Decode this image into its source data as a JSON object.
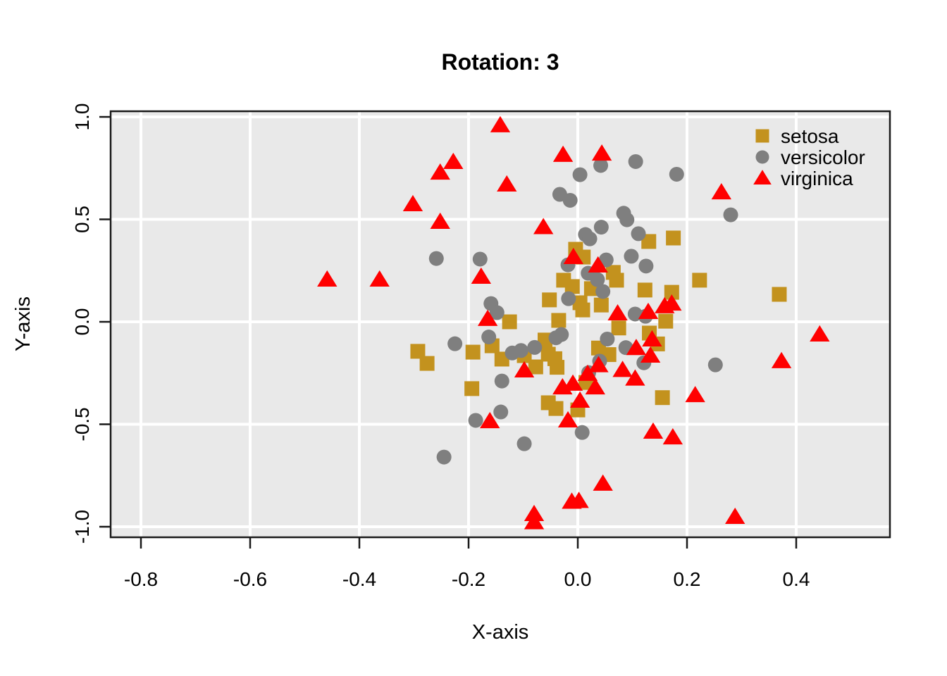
{
  "chart_data": {
    "type": "scatter",
    "title": "Rotation: 3",
    "xlabel": "X-axis",
    "ylabel": "Y-axis",
    "xlim": [
      -0.8555,
      0.5716
    ],
    "ylim": [
      -1.0515,
      1.0275
    ],
    "grid": true,
    "panel_bg": "#E9E9E9",
    "grid_color": "#FFFFFF",
    "axis_color": "#1A1A1A",
    "x_ticks": [
      {
        "value": -0.8,
        "label": "-0.8"
      },
      {
        "value": -0.6,
        "label": "-0.6"
      },
      {
        "value": -0.4,
        "label": "-0.4"
      },
      {
        "value": -0.2,
        "label": "-0.2"
      },
      {
        "value": 0.0,
        "label": "0.0"
      },
      {
        "value": 0.2,
        "label": "0.2"
      },
      {
        "value": 0.4,
        "label": "0.4"
      }
    ],
    "y_ticks": [
      {
        "value": -1.0,
        "label": "-1.0"
      },
      {
        "value": -0.5,
        "label": "-0.5"
      },
      {
        "value": 0.0,
        "label": "0.0"
      },
      {
        "value": 0.5,
        "label": "0.5"
      },
      {
        "value": 1.0,
        "label": "1.0"
      }
    ],
    "legend": {
      "position": "top-right"
    },
    "series": [
      {
        "name": "setosa",
        "marker": "square",
        "color": "#C3921E",
        "points": [
          [
            0.13,
            0.392
          ],
          [
            0.175,
            0.409
          ],
          [
            -0.004,
            0.354
          ],
          [
            0.01,
            0.316
          ],
          [
            0.065,
            0.241
          ],
          [
            0.071,
            0.203
          ],
          [
            -0.026,
            0.203
          ],
          [
            -0.01,
            0.172
          ],
          [
            0.025,
            0.162
          ],
          [
            0.123,
            0.155
          ],
          [
            0.172,
            0.144
          ],
          [
            -0.052,
            0.107
          ],
          [
            0.004,
            0.093
          ],
          [
            0.009,
            0.058
          ],
          [
            0.043,
            0.082
          ],
          [
            0.223,
            0.203
          ],
          [
            0.369,
            0.134
          ],
          [
            0.161,
            0.003
          ],
          [
            -0.125,
            0.0
          ],
          [
            -0.035,
            0.007
          ],
          [
            0.075,
            -0.03
          ],
          [
            0.131,
            -0.055
          ],
          [
            -0.157,
            -0.117
          ],
          [
            -0.192,
            -0.148
          ],
          [
            -0.139,
            -0.182
          ],
          [
            -0.098,
            -0.165
          ],
          [
            -0.06,
            -0.089
          ],
          [
            -0.054,
            -0.158
          ],
          [
            -0.042,
            -0.18
          ],
          [
            -0.038,
            -0.222
          ],
          [
            -0.077,
            -0.22
          ],
          [
            -0.194,
            -0.326
          ],
          [
            -0.054,
            -0.395
          ],
          [
            -0.04,
            -0.423
          ],
          [
            0.0,
            -0.43
          ],
          [
            0.038,
            -0.128
          ],
          [
            0.057,
            -0.16
          ],
          [
            0.146,
            -0.108
          ],
          [
            0.155,
            -0.37
          ],
          [
            -0.293,
            -0.144
          ],
          [
            -0.276,
            -0.203
          ],
          [
            0.015,
            -0.296
          ]
        ]
      },
      {
        "name": "versicolor",
        "marker": "circle",
        "color": "#7F7F7F",
        "points": [
          [
            -0.259,
            0.309
          ],
          [
            0.042,
            0.763
          ],
          [
            0.106,
            0.782
          ],
          [
            0.181,
            0.72
          ],
          [
            0.004,
            0.718
          ],
          [
            -0.033,
            0.622
          ],
          [
            -0.014,
            0.593
          ],
          [
            0.084,
            0.53
          ],
          [
            0.09,
            0.498
          ],
          [
            0.043,
            0.462
          ],
          [
            0.014,
            0.426
          ],
          [
            0.022,
            0.405
          ],
          [
            0.111,
            0.43
          ],
          [
            0.28,
            0.522
          ],
          [
            -0.179,
            0.306
          ],
          [
            -0.018,
            0.278
          ],
          [
            0.052,
            0.302
          ],
          [
            0.098,
            0.32
          ],
          [
            0.125,
            0.272
          ],
          [
            0.019,
            0.237
          ],
          [
            0.036,
            0.206
          ],
          [
            0.046,
            0.148
          ],
          [
            -0.017,
            0.113
          ],
          [
            -0.159,
            0.089
          ],
          [
            -0.148,
            0.045
          ],
          [
            0.105,
            0.038
          ],
          [
            0.124,
            0.027
          ],
          [
            -0.225,
            -0.107
          ],
          [
            -0.163,
            -0.074
          ],
          [
            -0.12,
            -0.152
          ],
          [
            -0.104,
            -0.14
          ],
          [
            -0.079,
            -0.125
          ],
          [
            -0.04,
            -0.078
          ],
          [
            -0.03,
            -0.062
          ],
          [
            0.054,
            -0.084
          ],
          [
            0.088,
            -0.126
          ],
          [
            0.121,
            -0.2
          ],
          [
            0.02,
            -0.248
          ],
          [
            0.04,
            -0.192
          ],
          [
            0.252,
            -0.21
          ],
          [
            -0.139,
            -0.289
          ],
          [
            -0.141,
            -0.44
          ],
          [
            -0.187,
            -0.481
          ],
          [
            0.008,
            -0.54
          ],
          [
            -0.098,
            -0.595
          ],
          [
            -0.245,
            -0.66
          ]
        ]
      },
      {
        "name": "virginica",
        "marker": "triangle",
        "color": "#FF0000",
        "points": [
          [
            -0.142,
            0.959
          ],
          [
            -0.027,
            0.815
          ],
          [
            0.044,
            0.821
          ],
          [
            -0.228,
            0.78
          ],
          [
            -0.252,
            0.728
          ],
          [
            -0.13,
            0.67
          ],
          [
            -0.302,
            0.574
          ],
          [
            -0.252,
            0.488
          ],
          [
            0.263,
            0.632
          ],
          [
            -0.063,
            0.462
          ],
          [
            -0.459,
            0.206
          ],
          [
            -0.363,
            0.206
          ],
          [
            -0.177,
            0.22
          ],
          [
            -0.008,
            0.316
          ],
          [
            0.037,
            0.275
          ],
          [
            -0.165,
            0.014
          ],
          [
            0.073,
            0.041
          ],
          [
            0.129,
            0.048
          ],
          [
            0.159,
            0.076
          ],
          [
            0.172,
            0.089
          ],
          [
            -0.098,
            -0.237
          ],
          [
            -0.028,
            -0.32
          ],
          [
            -0.009,
            -0.302
          ],
          [
            0.004,
            -0.385
          ],
          [
            -0.161,
            -0.485
          ],
          [
            -0.018,
            -0.481
          ],
          [
            0.038,
            -0.212
          ],
          [
            0.018,
            -0.254
          ],
          [
            0.082,
            -0.235
          ],
          [
            0.105,
            -0.277
          ],
          [
            0.107,
            -0.128
          ],
          [
            0.136,
            -0.086
          ],
          [
            0.133,
            -0.165
          ],
          [
            0.032,
            -0.32
          ],
          [
            0.138,
            -0.536
          ],
          [
            0.174,
            -0.564
          ],
          [
            0.215,
            -0.358
          ],
          [
            0.373,
            -0.192
          ],
          [
            0.443,
            -0.062
          ],
          [
            0.046,
            -0.79
          ],
          [
            -0.011,
            -0.878
          ],
          [
            0.002,
            -0.874
          ],
          [
            -0.08,
            -0.938
          ],
          [
            -0.08,
            -0.978
          ],
          [
            0.288,
            -0.952
          ]
        ]
      }
    ]
  }
}
